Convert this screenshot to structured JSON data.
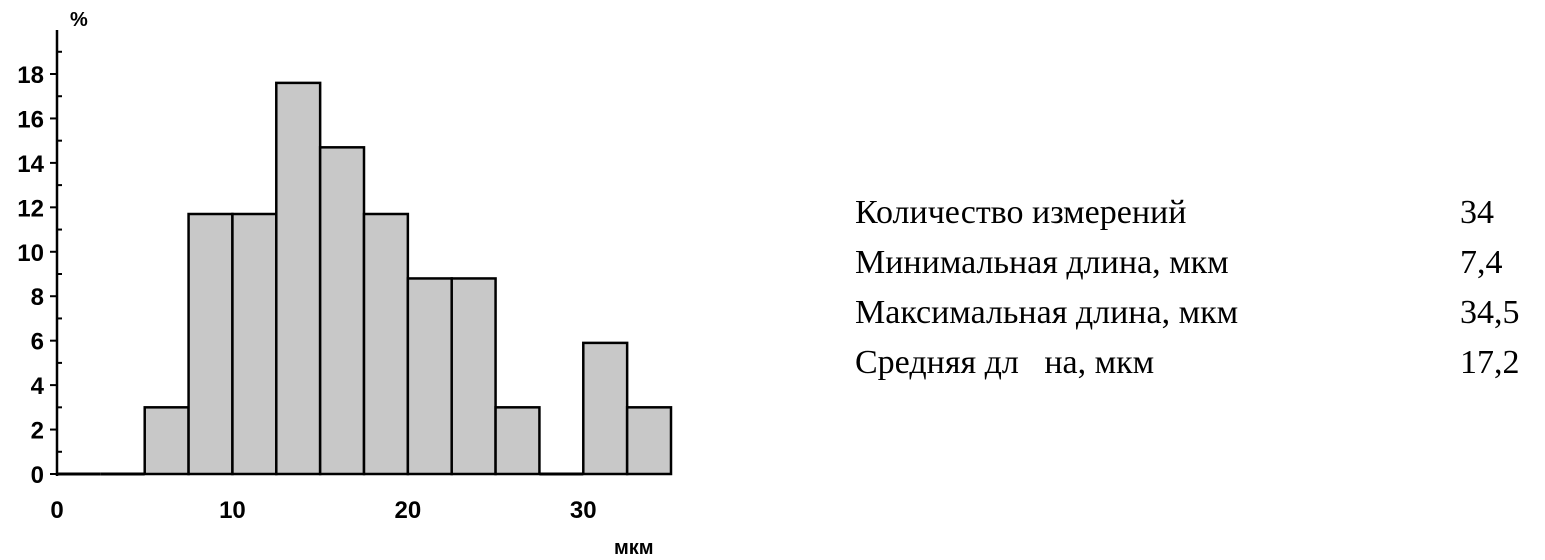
{
  "chart_data": {
    "type": "bar",
    "title": "",
    "ylabel": "%",
    "xlabel": "мкм",
    "bin_width": 2.5,
    "bin_starts": [
      0,
      2.5,
      5,
      7.5,
      10,
      12.5,
      15,
      17.5,
      20,
      22.5,
      25,
      27.5,
      30,
      32.5
    ],
    "values": [
      0,
      0,
      3,
      11.7,
      11.7,
      17.6,
      14.7,
      11.7,
      8.8,
      8.8,
      3,
      0,
      5.9,
      3
    ],
    "xlim": [
      0,
      35
    ],
    "ylim": [
      0,
      20
    ],
    "x_ticks": [
      "0",
      "10",
      "20",
      "30"
    ],
    "y_ticks": [
      "0",
      "2",
      "4",
      "6",
      "8",
      "10",
      "12",
      "14",
      "16",
      "18"
    ],
    "bar_color": "#c8c8c8",
    "grid": false,
    "legend": "none"
  },
  "stats": [
    {
      "label": "Количество измерений",
      "value": "34"
    },
    {
      "label": "Минимальная длина, мкм",
      "value": "7,4"
    },
    {
      "label": "Максимальная длина, мкм",
      "value": "34,5"
    },
    {
      "label": "Средняя дл   на, мкм",
      "value": "17,2"
    }
  ]
}
